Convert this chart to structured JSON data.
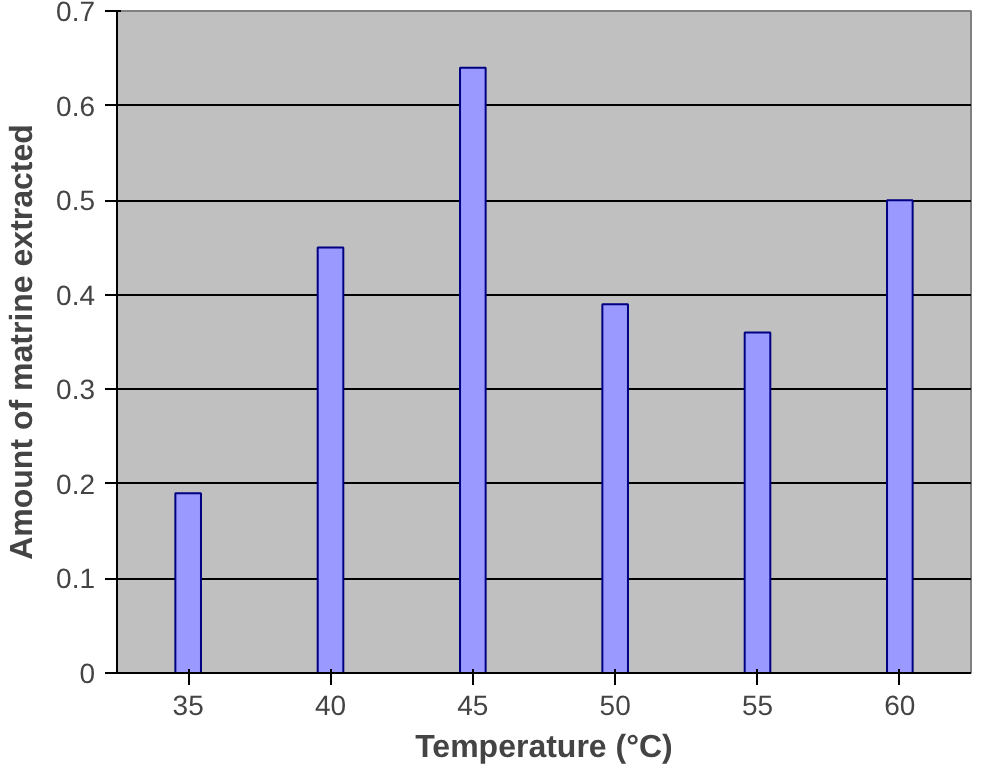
{
  "chart_data": {
    "type": "bar",
    "xlabel": "Temperature (°C)",
    "ylabel": "Amount of matrine extracted",
    "categories": [
      "35",
      "40",
      "45",
      "50",
      "55",
      "60"
    ],
    "values": [
      0.19,
      0.45,
      0.64,
      0.39,
      0.36,
      0.5
    ],
    "color": "#9999ff",
    "ylim": [
      0,
      0.7
    ],
    "yticks": [
      0,
      0.1,
      0.2,
      0.3,
      0.4,
      0.5,
      0.6,
      0.7
    ],
    "grid": "y"
  }
}
